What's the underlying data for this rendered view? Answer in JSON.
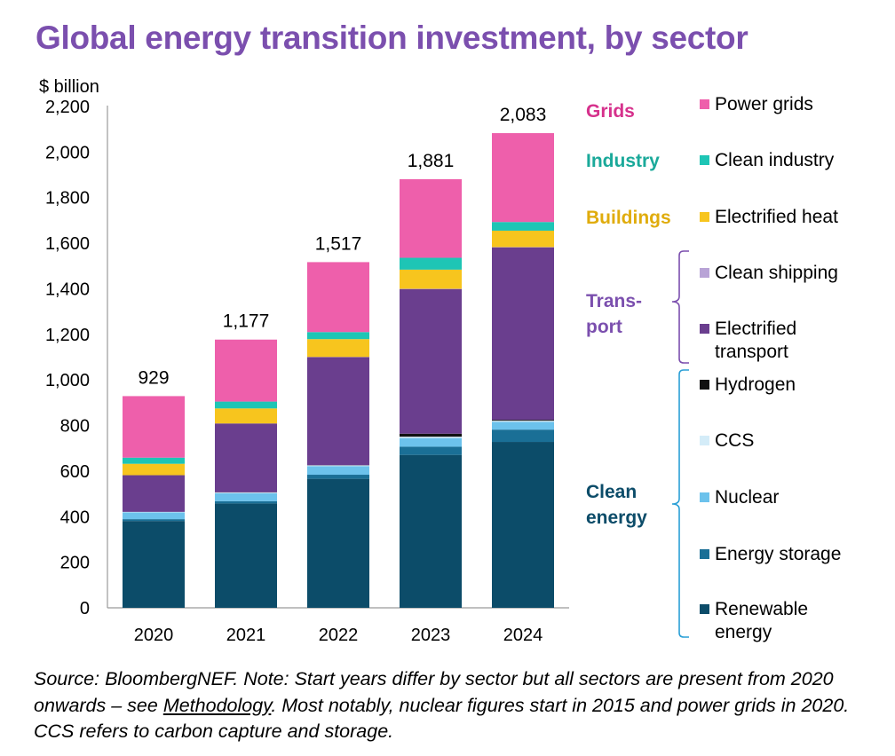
{
  "title": "Global energy transition investment, by sector",
  "colors": {
    "renewable_energy": "#0c4c69",
    "energy_storage": "#1a6f96",
    "nuclear": "#6cc2ec",
    "ccs": "#d4ecf8",
    "hydrogen": "#111111",
    "electrified_transport": "#6a3e8e",
    "clean_shipping": "#b8a3d6",
    "electrified_heat": "#f7c51e",
    "clean_industry": "#1ec5b5",
    "power_grids": "#ee5fab",
    "group_grids": "#d6318c",
    "group_industry": "#1aa99a",
    "group_buildings": "#e0ac0c",
    "group_transport": "#7b4fae",
    "group_clean_energy": "#0c4c69",
    "bracket_transport": "#7b4fae",
    "bracket_clean_energy": "#2a9fd6"
  },
  "chart_data": {
    "type": "bar",
    "stacked": true,
    "title": "Global energy transition investment, by sector",
    "ylabel": "$ billion",
    "xlabel": "",
    "ylim": [
      0,
      2200
    ],
    "yticks": [
      0,
      200,
      400,
      600,
      800,
      1000,
      1200,
      1400,
      1600,
      1800,
      2000,
      2200
    ],
    "ytick_labels": [
      "0",
      "200",
      "400",
      "600",
      "800",
      "1,000",
      "1,200",
      "1,400",
      "1,600",
      "1,800",
      "2,000",
      "2,200"
    ],
    "categories": [
      "2020",
      "2021",
      "2022",
      "2023",
      "2024"
    ],
    "totals": [
      929,
      1177,
      1517,
      1881,
      2083
    ],
    "total_labels": [
      "929",
      "1,177",
      "1,517",
      "1,881",
      "2,083"
    ],
    "series": [
      {
        "key": "renewable_energy",
        "name": "Renewable energy",
        "values": [
          381,
          458,
          566,
          671,
          728
        ]
      },
      {
        "key": "energy_storage",
        "name": "Energy storage",
        "values": [
          8,
          10,
          18,
          36,
          54
        ]
      },
      {
        "key": "nuclear",
        "name": "Nuclear",
        "values": [
          30,
          35,
          38,
          38,
          34
        ]
      },
      {
        "key": "ccs",
        "name": "CCS",
        "values": [
          2,
          3,
          3,
          6,
          5
        ]
      },
      {
        "key": "hydrogen",
        "name": "Hydrogen",
        "values": [
          0,
          1,
          1,
          13,
          4
        ]
      },
      {
        "key": "electrified_transport",
        "name": "Electrified transport",
        "values": [
          161,
          302,
          474,
          635,
          757
        ]
      },
      {
        "key": "clean_shipping",
        "name": "Clean shipping",
        "values": [
          0,
          0,
          1,
          1,
          1
        ]
      },
      {
        "key": "electrified_heat",
        "name": "Electrified heat",
        "values": [
          50,
          66,
          78,
          84,
          72
        ]
      },
      {
        "key": "clean_industry",
        "name": "Clean industry",
        "values": [
          27,
          30,
          31,
          52,
          38
        ]
      },
      {
        "key": "power_grids",
        "name": "Power grids",
        "values": [
          270,
          272,
          307,
          345,
          390
        ]
      }
    ],
    "legend_position": "right",
    "grid": false
  },
  "legend": {
    "groups": {
      "grids": "Grids",
      "industry": "Industry",
      "buildings": "Buildings",
      "transport": "Trans-\nport",
      "clean_energy": "Clean\nenergy"
    },
    "items": {
      "power_grids": "Power grids",
      "clean_industry": "Clean industry",
      "electrified_heat": "Electrified heat",
      "clean_shipping": "Clean shipping",
      "electrified_transport": "Electrified\ntransport",
      "hydrogen": "Hydrogen",
      "ccs": "CCS",
      "nuclear": "Nuclear",
      "energy_storage": "Energy storage",
      "renewable_energy": "Renewable\nenergy"
    }
  },
  "source": {
    "before_link": "Source: BloombergNEF. Note: Start years differ by sector but all sectors are present from 2020 onwards – see ",
    "link": "Methodology",
    "after_link": ". Most notably, nuclear figures start in 2015 and power grids in 2020. CCS refers to carbon capture and storage."
  }
}
